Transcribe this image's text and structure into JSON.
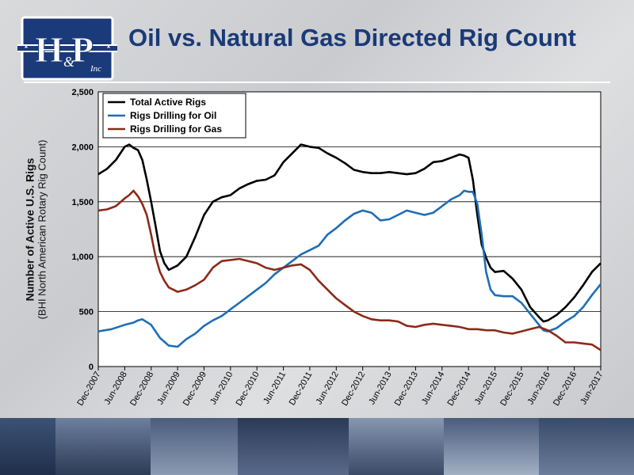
{
  "header": {
    "title": "Oil vs. Natural Gas Directed Rig Count",
    "logo_text": "H&P Inc"
  },
  "chart_data": {
    "type": "line",
    "title": "Oil vs. Natural Gas Directed Rig Count",
    "ylabel": "Number of Active U.S. Rigs",
    "ylabel_sub": "(BHI North American Rotary Rig Count)",
    "xlabel": "",
    "ylim": [
      0,
      2500
    ],
    "y_ticks": [
      0,
      500,
      1000,
      1500,
      2000,
      2500
    ],
    "y_tick_labels": [
      "0",
      "500",
      "1,000",
      "1,500",
      "2,000",
      "2,500"
    ],
    "x_tick_labels": [
      "Dec-2007",
      "Jun-2008",
      "Dec-2008",
      "Jun-2009",
      "Dec-2009",
      "Jun-2010",
      "Dec-2010",
      "Jun-2011",
      "Dec-2011",
      "Jun-2012",
      "Dec-2012",
      "Jun-2013",
      "Dec-2013",
      "Jun-2014",
      "Dec-2014",
      "Jun-2015",
      "Dec-2015",
      "Jun-2016",
      "Dec-2016",
      "Jun-2017"
    ],
    "grid": true,
    "legend_position": "top-left",
    "colors": {
      "total": "#000000",
      "oil": "#1f6db5",
      "gas": "#8b2a18"
    },
    "series": [
      {
        "name": "Total Active Rigs",
        "x": [
          "Dec-2007",
          "Feb-2008",
          "Apr-2008",
          "Jun-2008",
          "Jul-2008",
          "Aug-2008",
          "Sep-2008",
          "Oct-2008",
          "Nov-2008",
          "Dec-2008",
          "Jan-2009",
          "Feb-2009",
          "Mar-2009",
          "Apr-2009",
          "Jun-2009",
          "Aug-2009",
          "Oct-2009",
          "Dec-2009",
          "Feb-2010",
          "Apr-2010",
          "Jun-2010",
          "Aug-2010",
          "Oct-2010",
          "Dec-2010",
          "Feb-2011",
          "Apr-2011",
          "Jun-2011",
          "Aug-2011",
          "Oct-2011",
          "Dec-2011",
          "Feb-2012",
          "Apr-2012",
          "Jun-2012",
          "Aug-2012",
          "Oct-2012",
          "Dec-2012",
          "Feb-2013",
          "Apr-2013",
          "Jun-2013",
          "Aug-2013",
          "Oct-2013",
          "Dec-2013",
          "Feb-2014",
          "Apr-2014",
          "Jun-2014",
          "Aug-2014",
          "Oct-2014",
          "Nov-2014",
          "Dec-2014",
          "Jan-2015",
          "Feb-2015",
          "Mar-2015",
          "Apr-2015",
          "May-2015",
          "Jun-2015",
          "Aug-2015",
          "Oct-2015",
          "Dec-2015",
          "Feb-2016",
          "Apr-2016",
          "May-2016",
          "Jun-2016",
          "Aug-2016",
          "Oct-2016",
          "Dec-2016",
          "Feb-2017",
          "Apr-2017",
          "Jun-2017"
        ],
        "values": [
          1750,
          1800,
          1880,
          2000,
          2020,
          1990,
          1970,
          1880,
          1700,
          1500,
          1280,
          1050,
          940,
          880,
          920,
          1000,
          1180,
          1380,
          1500,
          1540,
          1560,
          1620,
          1660,
          1690,
          1700,
          1740,
          1860,
          1940,
          2020,
          2000,
          1990,
          1940,
          1900,
          1850,
          1790,
          1770,
          1760,
          1760,
          1770,
          1760,
          1750,
          1760,
          1800,
          1860,
          1870,
          1900,
          1930,
          1920,
          1900,
          1700,
          1380,
          1110,
          990,
          900,
          860,
          870,
          800,
          700,
          540,
          450,
          410,
          420,
          470,
          540,
          630,
          740,
          860,
          940
        ]
      },
      {
        "name": "Rigs Drilling for Oil",
        "x": [
          "Dec-2007",
          "Mar-2008",
          "Jun-2008",
          "Aug-2008",
          "Sep-2008",
          "Oct-2008",
          "Dec-2008",
          "Feb-2009",
          "Apr-2009",
          "Jun-2009",
          "Aug-2009",
          "Oct-2009",
          "Dec-2009",
          "Feb-2010",
          "Apr-2010",
          "Jun-2010",
          "Aug-2010",
          "Oct-2010",
          "Dec-2010",
          "Feb-2011",
          "Apr-2011",
          "Jun-2011",
          "Aug-2011",
          "Oct-2011",
          "Dec-2011",
          "Feb-2012",
          "Apr-2012",
          "Jun-2012",
          "Aug-2012",
          "Oct-2012",
          "Dec-2012",
          "Feb-2013",
          "Apr-2013",
          "Jun-2013",
          "Aug-2013",
          "Oct-2013",
          "Dec-2013",
          "Feb-2014",
          "Apr-2014",
          "Jun-2014",
          "Aug-2014",
          "Oct-2014",
          "Nov-2014",
          "Dec-2014",
          "Jan-2015",
          "Feb-2015",
          "Mar-2015",
          "Apr-2015",
          "May-2015",
          "Jun-2015",
          "Aug-2015",
          "Oct-2015",
          "Dec-2015",
          "Feb-2016",
          "Apr-2016",
          "May-2016",
          "Jun-2016",
          "Aug-2016",
          "Oct-2016",
          "Dec-2016",
          "Feb-2017",
          "Apr-2017",
          "Jun-2017"
        ],
        "values": [
          320,
          340,
          380,
          400,
          420,
          430,
          380,
          260,
          190,
          180,
          250,
          300,
          370,
          420,
          460,
          520,
          580,
          640,
          700,
          760,
          840,
          900,
          960,
          1020,
          1060,
          1100,
          1200,
          1260,
          1330,
          1390,
          1420,
          1400,
          1330,
          1340,
          1380,
          1420,
          1400,
          1380,
          1400,
          1460,
          1520,
          1560,
          1600,
          1590,
          1590,
          1480,
          1200,
          860,
          700,
          650,
          640,
          640,
          580,
          480,
          380,
          330,
          320,
          350,
          410,
          460,
          540,
          650,
          750
        ]
      },
      {
        "name": "Rigs Drilling for Gas",
        "x": [
          "Dec-2007",
          "Feb-2008",
          "Apr-2008",
          "Jun-2008",
          "Jul-2008",
          "Aug-2008",
          "Sep-2008",
          "Oct-2008",
          "Nov-2008",
          "Dec-2008",
          "Jan-2009",
          "Feb-2009",
          "Mar-2009",
          "Apr-2009",
          "Jun-2009",
          "Aug-2009",
          "Oct-2009",
          "Dec-2009",
          "Feb-2010",
          "Apr-2010",
          "Jun-2010",
          "Aug-2010",
          "Oct-2010",
          "Dec-2010",
          "Feb-2011",
          "Apr-2011",
          "Jun-2011",
          "Aug-2011",
          "Oct-2011",
          "Dec-2011",
          "Feb-2012",
          "Apr-2012",
          "Jun-2012",
          "Aug-2012",
          "Oct-2012",
          "Dec-2012",
          "Feb-2013",
          "Apr-2013",
          "Jun-2013",
          "Aug-2013",
          "Oct-2013",
          "Dec-2013",
          "Feb-2014",
          "Apr-2014",
          "Jun-2014",
          "Aug-2014",
          "Oct-2014",
          "Dec-2014",
          "Feb-2015",
          "Apr-2015",
          "Jun-2015",
          "Aug-2015",
          "Oct-2015",
          "Dec-2015",
          "Feb-2016",
          "Apr-2016",
          "Jun-2016",
          "Aug-2016",
          "Oct-2016",
          "Dec-2016",
          "Feb-2017",
          "Apr-2017",
          "Jun-2017"
        ],
        "values": [
          1420,
          1430,
          1460,
          1530,
          1560,
          1600,
          1550,
          1480,
          1380,
          1200,
          1000,
          860,
          780,
          720,
          680,
          700,
          740,
          790,
          900,
          960,
          970,
          980,
          960,
          940,
          900,
          880,
          900,
          920,
          930,
          880,
          780,
          700,
          620,
          560,
          500,
          460,
          430,
          420,
          420,
          410,
          370,
          360,
          380,
          390,
          380,
          370,
          360,
          340,
          340,
          330,
          330,
          310,
          300,
          320,
          340,
          360,
          330,
          280,
          220,
          220,
          210,
          200,
          150
        ]
      }
    ]
  }
}
